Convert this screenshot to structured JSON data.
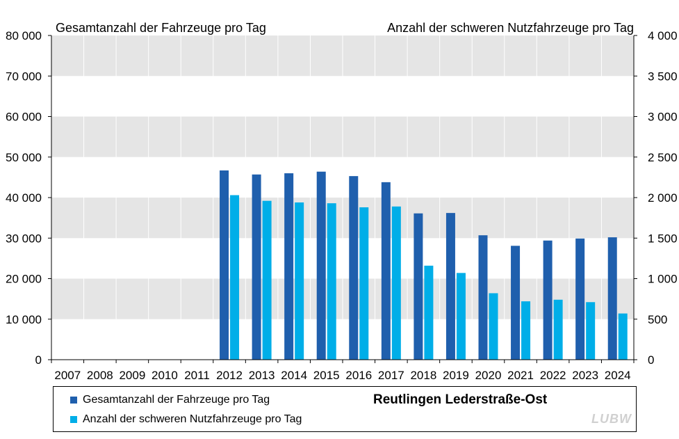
{
  "chart_data": {
    "type": "bar",
    "title_left": "Gesamtanzahl  der Fahrzeuge  pro Tag",
    "title_right": "Anzahl  der schweren Nutzfahrzeuge  pro Tag",
    "location": "Reutlingen Lederstraße-Ost",
    "logo_text": "LUBW",
    "categories": [
      "2007",
      "2008",
      "2009",
      "2010",
      "2011",
      "2012",
      "2013",
      "2014",
      "2015",
      "2016",
      "2017",
      "2018",
      "2019",
      "2020",
      "2021",
      "2022",
      "2023",
      "2024"
    ],
    "left_axis": {
      "ylim": [
        0,
        80000
      ],
      "ticks": [
        0,
        10000,
        20000,
        30000,
        40000,
        50000,
        60000,
        70000,
        80000
      ],
      "tick_labels": [
        "0",
        "10 000",
        "20 000",
        "30 000",
        "40 000",
        "50 000",
        "60 000",
        "70 000",
        "80 000"
      ]
    },
    "right_axis": {
      "ylim": [
        0,
        4000
      ],
      "ticks": [
        0,
        500,
        1000,
        1500,
        2000,
        2500,
        3000,
        3500,
        4000
      ],
      "tick_labels": [
        "0",
        "500",
        "1 000",
        "1 500",
        "2 000",
        "2 500",
        "3 000",
        "3 500",
        "4 000"
      ]
    },
    "series": [
      {
        "name": "Gesamtanzahl der Fahrzeuge pro Tag",
        "axis": "left",
        "color": "#1f5fad",
        "values": [
          null,
          null,
          null,
          null,
          null,
          46700,
          45700,
          46000,
          46400,
          45300,
          43800,
          36100,
          36200,
          30700,
          28100,
          29400,
          29900,
          30200
        ]
      },
      {
        "name": "Anzahl der schweren Nutzfahrzeuge pro Tag",
        "axis": "right",
        "color": "#00aee8",
        "values": [
          null,
          null,
          null,
          null,
          null,
          2030,
          1960,
          1940,
          1930,
          1880,
          1890,
          1160,
          1070,
          820,
          720,
          740,
          710,
          570
        ]
      }
    ],
    "grid": "alternating-bands",
    "band_color": "#e5e5e5",
    "legend_position": "bottom"
  }
}
